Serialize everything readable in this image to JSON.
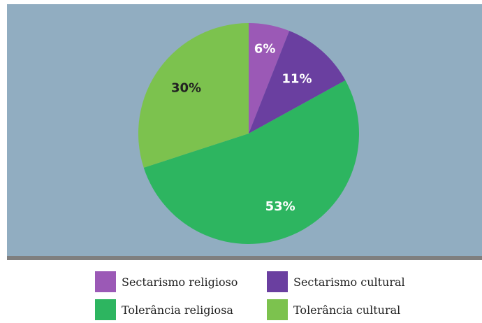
{
  "chart_data": {
    "type": "pie",
    "slices": [
      {
        "label": "Sectarismo religioso",
        "value": 6,
        "value_label": "6%",
        "color": "#9b59b6",
        "label_color": "#ffffff"
      },
      {
        "label": "Sectarismo cultural",
        "value": 11,
        "value_label": "11%",
        "color": "#6a3fa0",
        "label_color": "#ffffff"
      },
      {
        "label": "Tolerância religiosa",
        "value": 53,
        "value_label": "53%",
        "color": "#2db560",
        "label_color": "#ffffff"
      },
      {
        "label": "Tolerância cultural",
        "value": 30,
        "value_label": "30%",
        "color": "#7cc24e",
        "label_color": "#222222"
      }
    ],
    "start_angle": "top",
    "direction": "clockwise",
    "legend_position": "bottom",
    "background_color": "#91adc1"
  },
  "legend": {
    "items": [
      {
        "label": "Sectarismo religioso",
        "color": "#9b59b6"
      },
      {
        "label": "Sectarismo cultural",
        "color": "#6a3fa0"
      },
      {
        "label": "Tolerância religiosa",
        "color": "#2db560"
      },
      {
        "label": "Tolerância cultural",
        "color": "#7cc24e"
      }
    ]
  }
}
